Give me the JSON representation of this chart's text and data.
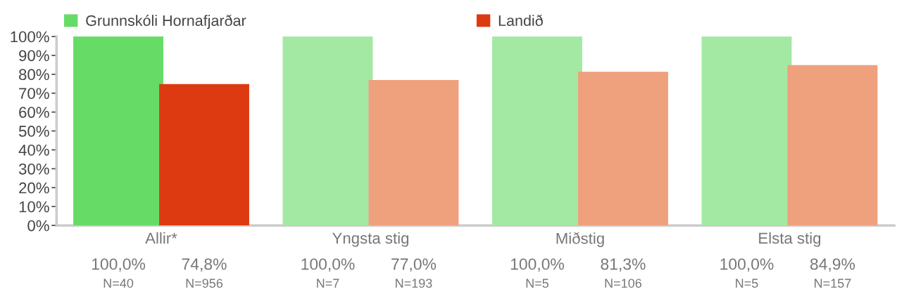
{
  "chart_data": {
    "type": "bar",
    "categories": [
      "Allir*",
      "Yngsta stig",
      "Miðstig",
      "Elsta stig"
    ],
    "series": [
      {
        "name": "Grunnskóli Hornafjarðar",
        "color": "#66dc66",
        "colors": [
          "#66dc66",
          "#a3e9a4",
          "#a3e9a4",
          "#a3e9a4"
        ],
        "values": [
          100,
          100,
          100,
          100
        ],
        "value_labels": [
          "100,0%",
          "100,0%",
          "100,0%",
          "100,0%"
        ]
      },
      {
        "name": "Landið",
        "color": "#dd3a12",
        "colors": [
          "#dd3a12",
          "#eea17c",
          "#eea17c",
          "#eea17c"
        ],
        "values": [
          74.8,
          77.0,
          81.3,
          84.9
        ],
        "value_labels": [
          "74,8%",
          "77,0%",
          "81,3%",
          "84,9%"
        ]
      }
    ],
    "ylim": [
      0,
      100
    ],
    "yticks": [
      {
        "value": 0,
        "label": "0%"
      },
      {
        "value": 10,
        "label": "10%"
      },
      {
        "value": 20,
        "label": "20%"
      },
      {
        "value": 30,
        "label": "30%"
      },
      {
        "value": 40,
        "label": "40%"
      },
      {
        "value": 50,
        "label": "50%"
      },
      {
        "value": 60,
        "label": "60%"
      },
      {
        "value": 70,
        "label": "70%"
      },
      {
        "value": 80,
        "label": "80%"
      },
      {
        "value": 90,
        "label": "90%"
      },
      {
        "value": 100,
        "label": "100%"
      }
    ],
    "annotations": [
      "N=40",
      "N=956",
      "N=7",
      "N=193",
      "N=5",
      "N=106",
      "N=5",
      "N=157"
    ],
    "legend": "top",
    "grid": false
  }
}
